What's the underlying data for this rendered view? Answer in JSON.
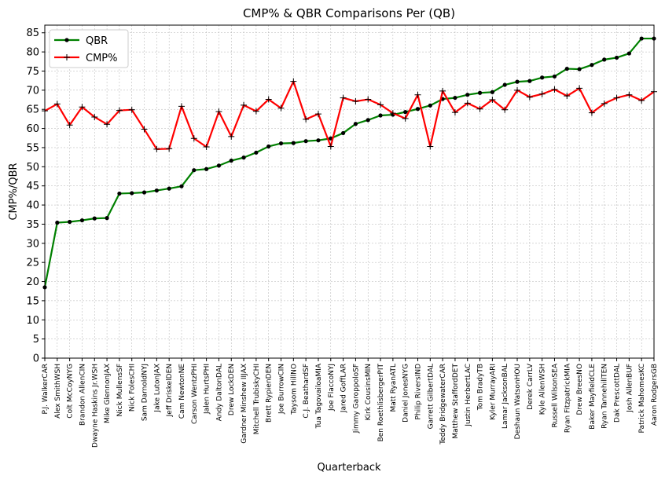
{
  "chart_data": {
    "type": "line",
    "title": "CMP% & QBR Comparisons Per (QB)",
    "xlabel": "Quarterback",
    "ylabel": "CMP%/QBR",
    "ylim": [
      0,
      87
    ],
    "yticks": [
      0,
      5,
      10,
      15,
      20,
      25,
      30,
      35,
      40,
      45,
      50,
      55,
      60,
      65,
      70,
      75,
      80,
      85
    ],
    "grid": true,
    "legend_position": "top-left",
    "categories": [
      "P.J. WalkerCAR",
      "Alex SmithWSH",
      "Colt McCoyNYG",
      "Brandon AllenCIN",
      "Dwayne Haskins Jr.WSH",
      "Mike GlennonJAX",
      "Nick MullensSF",
      "Nick FolesCHI",
      "Sam DarnoldNYJ",
      "Jake LutonJAX",
      "Jeff DriskelDEN",
      "Cam NewtonNE",
      "Carson WentzPHI",
      "Jalen HurtsPHI",
      "Andy DaltonDAL",
      "Drew LockDEN",
      "Gardner Minshew IIJAX",
      "Mitchell TrubiskyCHI",
      "Brett RypienDEN",
      "Joe BurrowCIN",
      "Taysom HillNO",
      "C.J. BeathardSF",
      "Tua TagovailoaMIA",
      "Joe FlaccoNYJ",
      "Jared GoffLAR",
      "Jimmy GaroppoloSF",
      "Kirk CousinsMIN",
      "Ben RoethlisbergerPIT",
      "Matt RyanATL",
      "Daniel JonesNYG",
      "Philip RiversIND",
      "Garrett GilbertDAL",
      "Teddy BridgewaterCAR",
      "Matthew StaffordDET",
      "Justin HerbertLAC",
      "Tom BradyTB",
      "Kyler MurrayARI",
      "Lamar JacksonBAL",
      "Deshaun WatsonHOU",
      "Derek CarrLV",
      "Kyle AllenWSH",
      "Russell WilsonSEA",
      "Ryan FitzpatrickMIA",
      "Drew BreesNO",
      "Baker MayfieldCLE",
      "Ryan TannehillTEN",
      "Dak PrescottDAL",
      "Josh AllenBUF",
      "Patrick MahomesKC",
      "Aaron RodgersGB"
    ],
    "series": [
      {
        "name": "QBR",
        "color": "#008000",
        "marker": "dot",
        "values": [
          18.5,
          35.4,
          35.6,
          36.0,
          36.5,
          36.6,
          43.0,
          43.1,
          43.3,
          43.8,
          44.3,
          44.9,
          49.1,
          49.4,
          50.3,
          51.6,
          52.4,
          53.7,
          55.3,
          56.1,
          56.2,
          56.7,
          56.9,
          57.4,
          58.8,
          61.2,
          62.2,
          63.4,
          63.6,
          64.3,
          65.1,
          66.0,
          67.7,
          68.0,
          68.8,
          69.3,
          69.5,
          71.4,
          72.2,
          72.4,
          73.3,
          73.6,
          75.6,
          75.5,
          76.6,
          78.0,
          78.5,
          79.6,
          83.5,
          83.5
        ]
      },
      {
        "name": "CMP%",
        "color": "#ff0000",
        "marker": "plus",
        "values": [
          64.6,
          66.4,
          60.9,
          65.6,
          63.0,
          61.1,
          64.7,
          64.9,
          59.8,
          54.6,
          54.7,
          65.8,
          57.4,
          55.2,
          64.4,
          57.9,
          66.1,
          64.5,
          67.6,
          65.3,
          72.3,
          62.4,
          63.8,
          55.3,
          68.0,
          67.1,
          67.6,
          66.2,
          64.0,
          62.6,
          68.8,
          55.3,
          69.8,
          64.2,
          66.6,
          65.1,
          67.5,
          64.9,
          70.0,
          68.2,
          69.0,
          70.2,
          68.5,
          70.5,
          64.1,
          66.5,
          68.0,
          68.8,
          67.3,
          69.6
        ]
      }
    ]
  }
}
